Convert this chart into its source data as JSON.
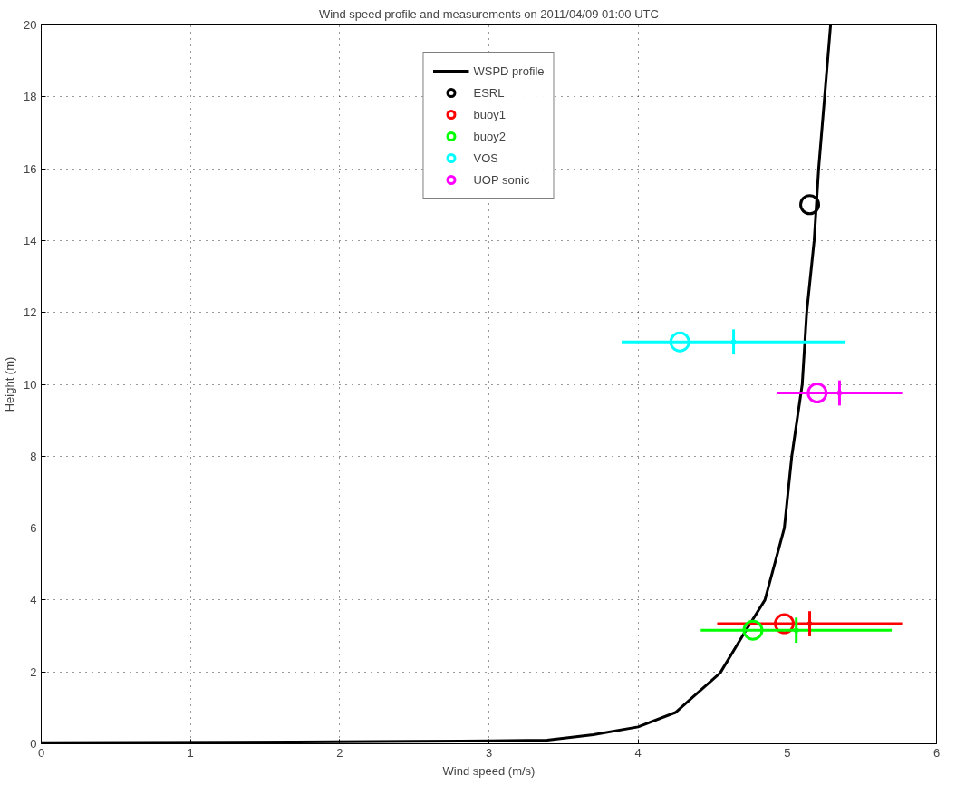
{
  "chart_data": {
    "type": "scatter",
    "title": "Wind speed profile and measurements on 2011/04/09 01:00 UTC",
    "xlabel": "Wind speed (m/s)",
    "ylabel": "Height (m)",
    "xlim": [
      0,
      6
    ],
    "ylim": [
      0,
      20
    ],
    "xticks": [
      0,
      1,
      2,
      3,
      4,
      5,
      6
    ],
    "yticks": [
      0,
      2,
      4,
      6,
      8,
      10,
      12,
      14,
      16,
      18,
      20
    ],
    "grid": true,
    "legend": "top",
    "marker": "circle",
    "series": [
      {
        "name": "WSPD profile",
        "type": "line",
        "marker": "none",
        "color": "#000000",
        "line_style": "solid",
        "x": [
          0,
          1.7,
          2.5,
          3.0,
          3.39,
          3.7,
          4.0,
          4.25,
          4.55,
          4.7,
          4.85,
          4.98,
          5.03,
          5.1,
          5.13,
          5.18,
          5.21,
          5.25,
          5.29
        ],
        "values": [
          0.03,
          0.05,
          0.07,
          0.08,
          0.1,
          0.25,
          0.47,
          0.87,
          1.97,
          3.0,
          4.0,
          6.0,
          8.0,
          10.0,
          12.0,
          14.0,
          16.0,
          18.0,
          20.0
        ]
      },
      {
        "name": "ESRL",
        "color": "#000000",
        "x": [
          5.15
        ],
        "values": [
          15.0
        ]
      },
      {
        "name": "buoy1",
        "color": "#ff0000",
        "x": [
          4.98
        ],
        "values": [
          3.34
        ],
        "xerrors": [
          [
            4.53,
            5.77
          ]
        ]
      },
      {
        "name": "buoy2",
        "color": "#00ff00",
        "x": [
          4.77
        ],
        "values": [
          3.16
        ],
        "xerrors": [
          [
            4.42,
            5.7
          ]
        ]
      },
      {
        "name": "VOS",
        "color": "#00ffff",
        "x": [
          4.28
        ],
        "values": [
          11.18
        ],
        "xerrors": [
          [
            3.89,
            5.39
          ]
        ]
      },
      {
        "name": "UOP sonic",
        "color": "#ff00ff",
        "x": [
          5.2
        ],
        "values": [
          9.76
        ],
        "xerrors": [
          [
            4.93,
            5.77
          ]
        ]
      },
      {
        "color": "#ff0000",
        "x": [
          5.15
        ],
        "values": [
          3.34
        ],
        "errors": [
          0.35
        ]
      },
      {
        "color": "#00ff00",
        "x": [
          5.06
        ],
        "values": [
          3.16
        ],
        "errors": [
          0.35
        ]
      },
      {
        "color": "#00ffff",
        "x": [
          4.64
        ],
        "values": [
          11.18
        ],
        "errors": [
          0.35
        ]
      },
      {
        "color": "#ff00ff",
        "x": [
          5.35
        ],
        "values": [
          9.76
        ],
        "errors": [
          0.35
        ]
      }
    ]
  }
}
